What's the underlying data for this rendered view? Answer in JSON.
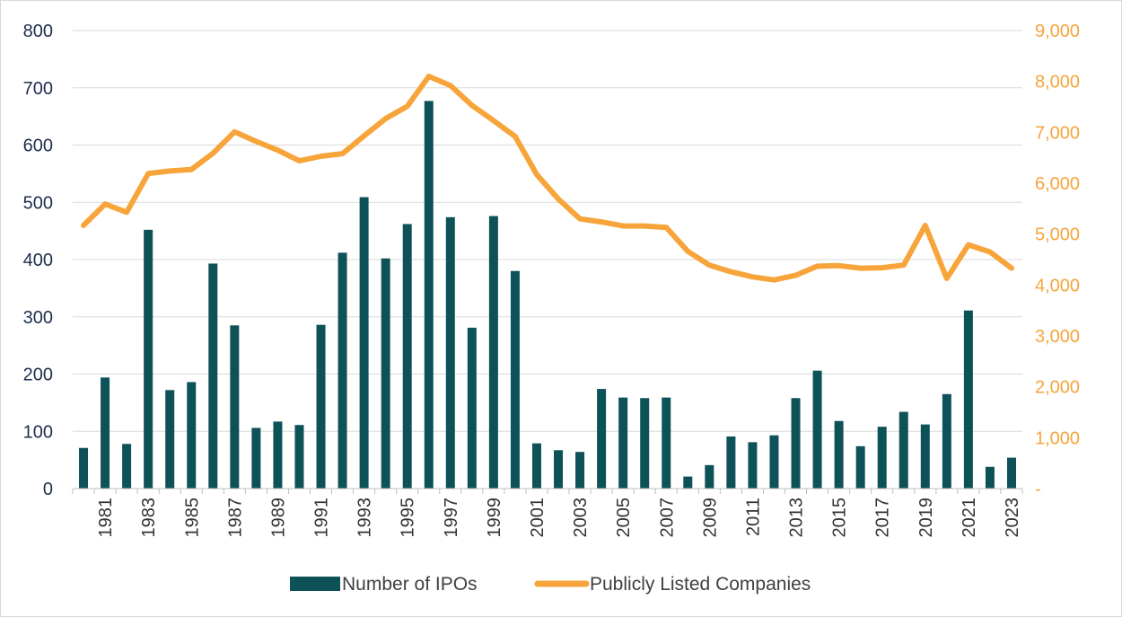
{
  "chart_data": {
    "type": "bar+line",
    "colors": {
      "bars": "#0d5258",
      "line": "#f7a43b",
      "grid": "#d9d9d9",
      "left_axis_text": "#1f2d4d"
    },
    "x": [
      1980,
      1981,
      1982,
      1983,
      1984,
      1985,
      1986,
      1987,
      1988,
      1989,
      1990,
      1991,
      1992,
      1993,
      1994,
      1995,
      1996,
      1997,
      1998,
      1999,
      2000,
      2001,
      2002,
      2003,
      2004,
      2005,
      2006,
      2007,
      2008,
      2009,
      2010,
      2011,
      2012,
      2013,
      2014,
      2015,
      2016,
      2017,
      2018,
      2019,
      2020,
      2021,
      2022,
      2023
    ],
    "x_tick_labels": [
      "1981",
      "1983",
      "1985",
      "1987",
      "1989",
      "1991",
      "1993",
      "1995",
      "1997",
      "1999",
      "2001",
      "2003",
      "2005",
      "2007",
      "2009",
      "2011",
      "2013",
      "2015",
      "2017",
      "2019",
      "2021",
      "2023"
    ],
    "series": [
      {
        "name": "Number of IPOs",
        "type": "bar",
        "axis": "left",
        "values": [
          71,
          194,
          78,
          452,
          172,
          186,
          393,
          285,
          106,
          117,
          111,
          286,
          412,
          509,
          402,
          462,
          677,
          474,
          281,
          476,
          380,
          79,
          67,
          64,
          174,
          159,
          158,
          159,
          21,
          41,
          91,
          81,
          93,
          158,
          206,
          118,
          74,
          108,
          134,
          112,
          165,
          311,
          38,
          54
        ]
      },
      {
        "name": "Publicly Listed Companies",
        "type": "line",
        "axis": "right",
        "values": [
          5170,
          5590,
          5430,
          6190,
          6240,
          6270,
          6590,
          7010,
          6820,
          6650,
          6440,
          6530,
          6580,
          6930,
          7270,
          7510,
          8100,
          7920,
          7530,
          7230,
          6920,
          6170,
          5690,
          5300,
          5240,
          5160,
          5160,
          5130,
          4660,
          4390,
          4260,
          4160,
          4100,
          4190,
          4370,
          4380,
          4330,
          4340,
          4390,
          5170,
          4130,
          4790,
          4650,
          4330
        ]
      }
    ],
    "y_left": {
      "ticks": [
        "0",
        "100",
        "200",
        "300",
        "400",
        "500",
        "600",
        "700",
        "800"
      ],
      "lim": [
        0,
        800
      ]
    },
    "y_right": {
      "ticks": [
        "-",
        "1,000",
        "2,000",
        "3,000",
        "4,000",
        "5,000",
        "6,000",
        "7,000",
        "8,000",
        "9,000"
      ],
      "lim": [
        0,
        9000
      ]
    },
    "grid": true,
    "legend_position": "bottom"
  }
}
